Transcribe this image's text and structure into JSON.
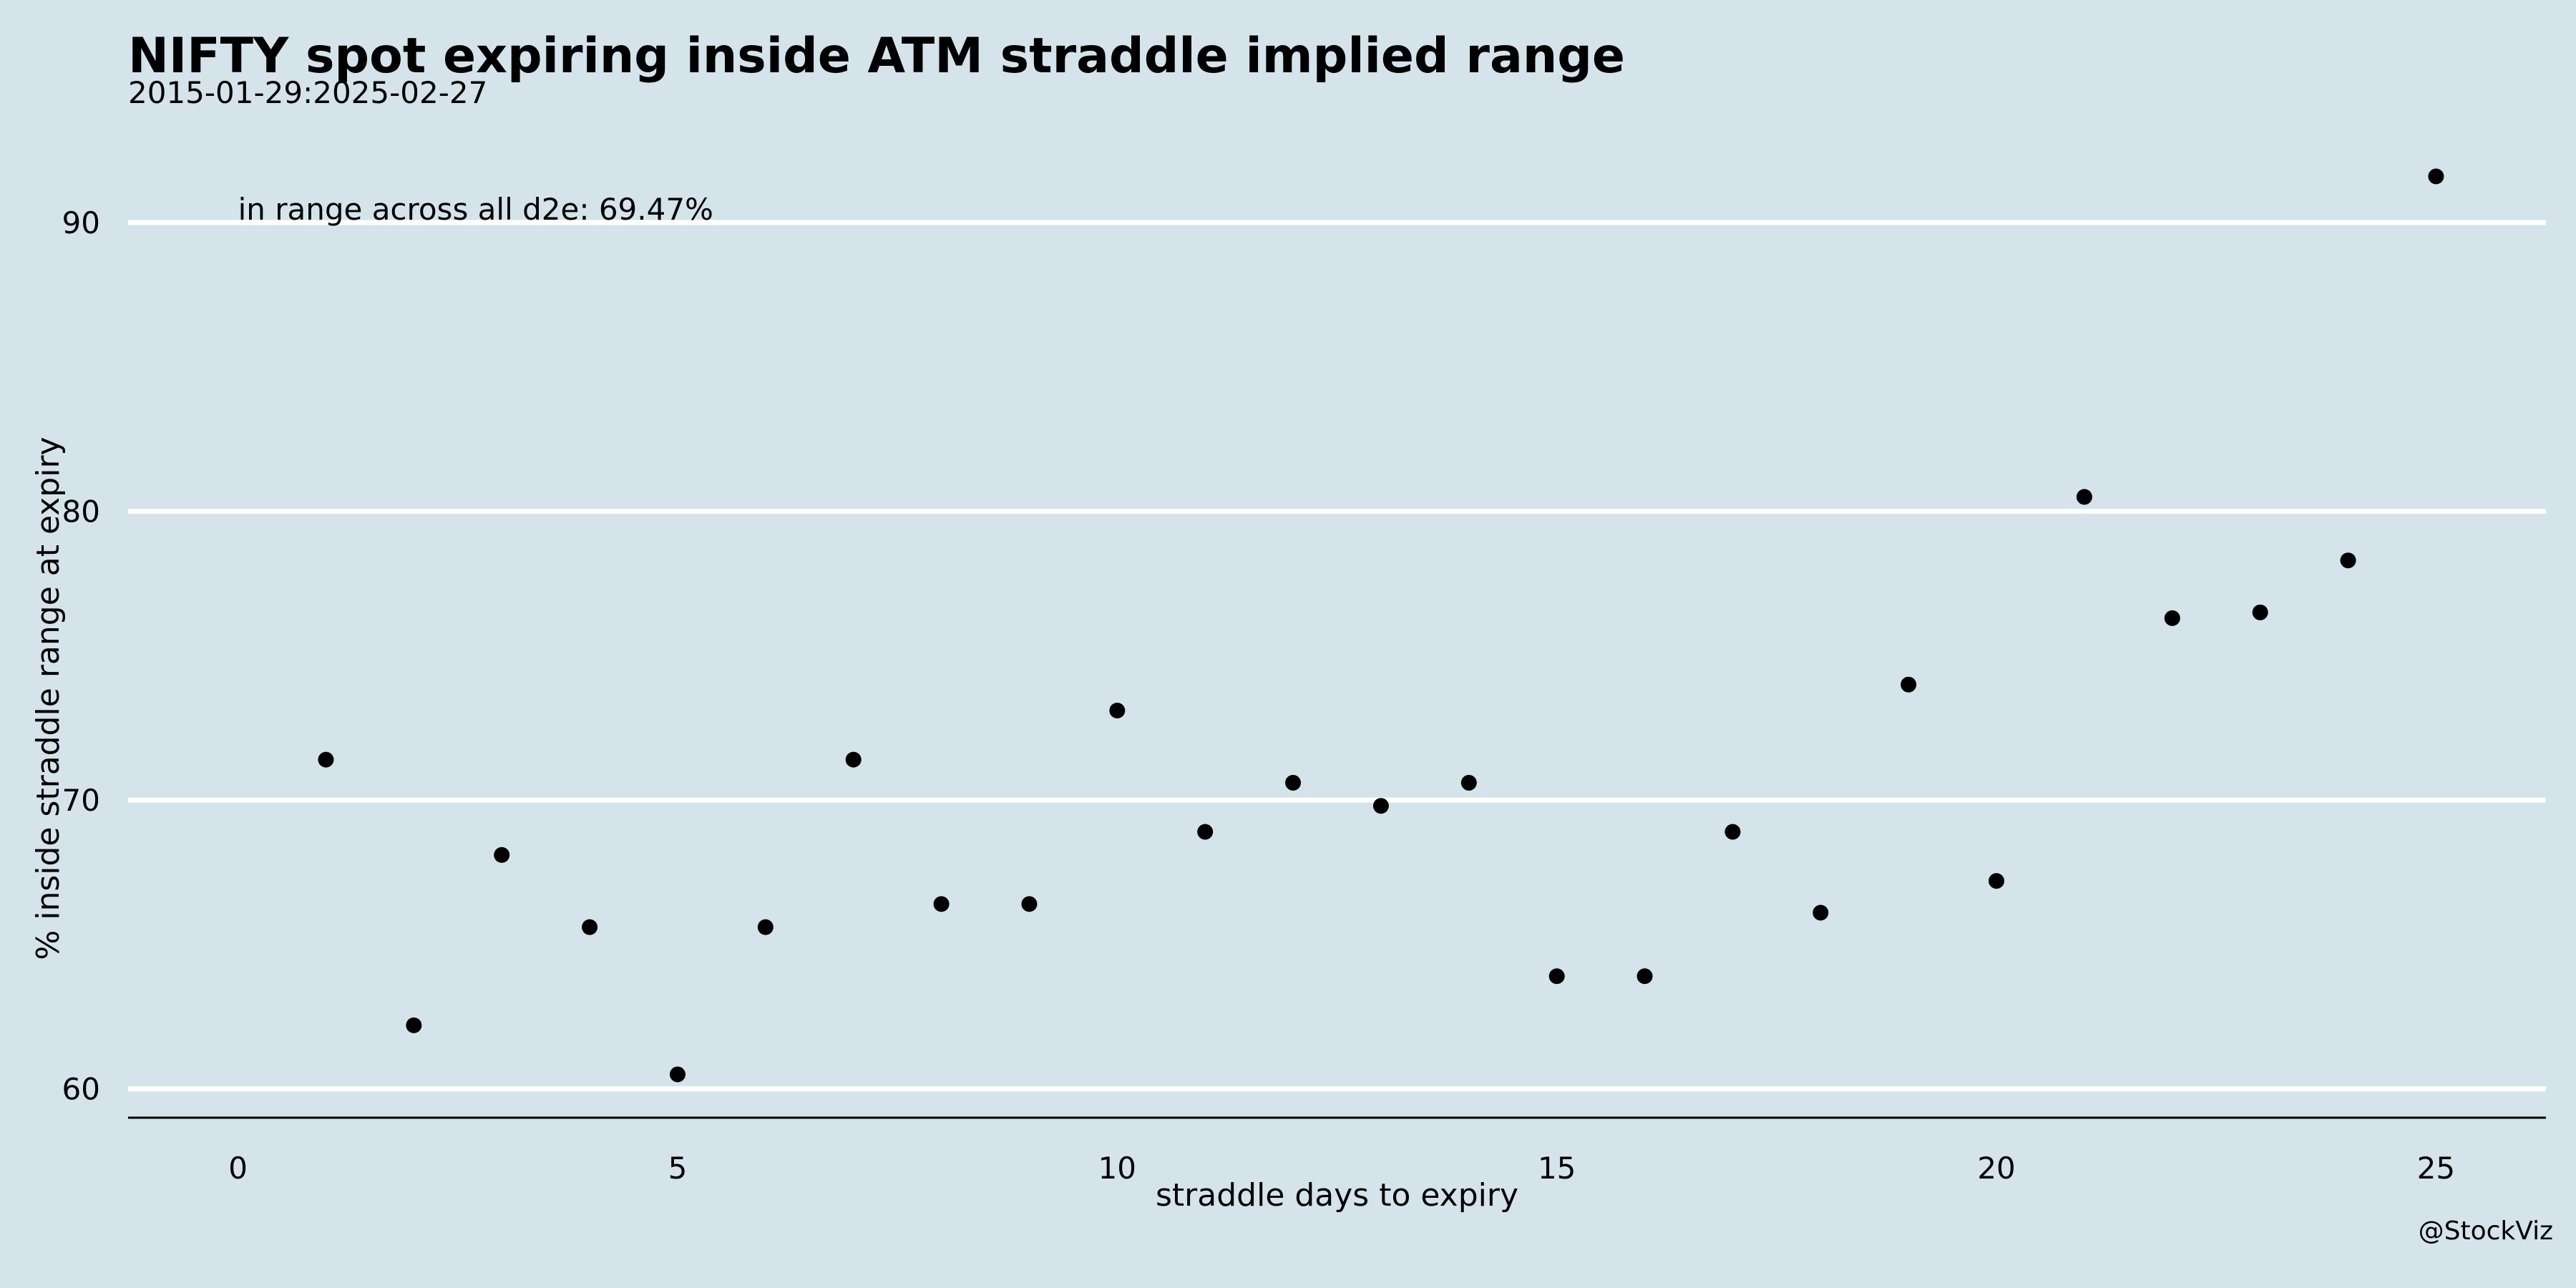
{
  "chart_data": {
    "type": "scatter",
    "title": "NIFTY spot expiring inside ATM straddle implied range",
    "subtitle": "2015-01-29:2025-02-27",
    "xlabel": "straddle days to expiry",
    "ylabel": "% inside straddle range at expiry",
    "caption": "@StockViz",
    "annotation": "in range across all d2e: 69.47%",
    "xlim": [
      -1.25,
      26.25
    ],
    "ylim": [
      59,
      93
    ],
    "x_ticks": [
      0,
      5,
      10,
      15,
      20,
      25
    ],
    "y_ticks": [
      60,
      70,
      80,
      90
    ],
    "grid": "horizontal",
    "series": [
      {
        "x": [
          1,
          2,
          3,
          4,
          5,
          6,
          7,
          8,
          9,
          10,
          11,
          12,
          13,
          14,
          15,
          16,
          17,
          18,
          19,
          20,
          21,
          22,
          23,
          24,
          25
        ],
        "y": [
          71.4,
          62.2,
          68.1,
          65.6,
          60.5,
          65.6,
          71.4,
          66.4,
          66.4,
          73.1,
          68.9,
          70.6,
          69.8,
          70.6,
          63.9,
          63.9,
          68.9,
          66.1,
          74.0,
          67.2,
          80.5,
          76.3,
          76.5,
          78.3,
          91.6
        ]
      }
    ],
    "colors": {
      "background": "#d5e4eb",
      "grid": "#ffffff",
      "point": "#000000"
    }
  }
}
